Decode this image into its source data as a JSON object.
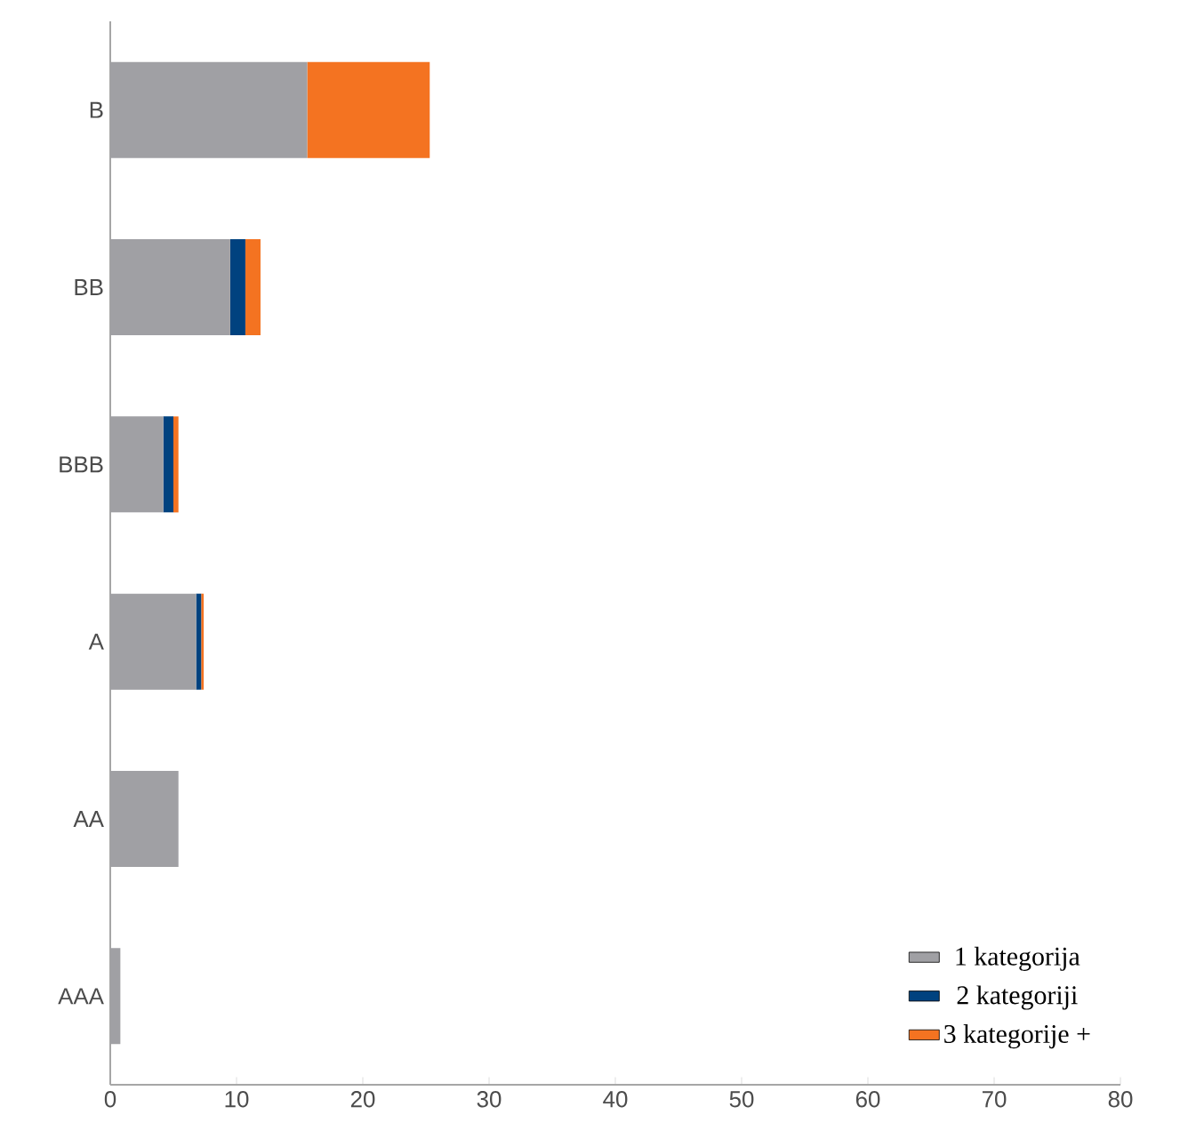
{
  "chart_data": {
    "type": "bar",
    "orientation": "horizontal",
    "stacked": true,
    "categories": [
      "B",
      "BB",
      "BBB",
      "A",
      "AA",
      "AAA"
    ],
    "series": [
      {
        "name": "1 kategorija",
        "color": "#a0a0a4",
        "values": [
          15.6,
          9.5,
          4.2,
          6.8,
          5.4,
          0.8
        ]
      },
      {
        "name": "2 kategoriji",
        "color": "#00427f",
        "values": [
          null,
          1.2,
          0.8,
          0.4,
          null,
          null
        ]
      },
      {
        "name": "3 kategorije +",
        "color": "#f47321",
        "values": [
          9.7,
          1.2,
          0.4,
          0.2,
          null,
          null
        ]
      }
    ],
    "xlim": [
      0,
      80
    ],
    "xticks": [
      0,
      10,
      20,
      30,
      40,
      50,
      60,
      70,
      80
    ],
    "legend": "bottom right"
  }
}
